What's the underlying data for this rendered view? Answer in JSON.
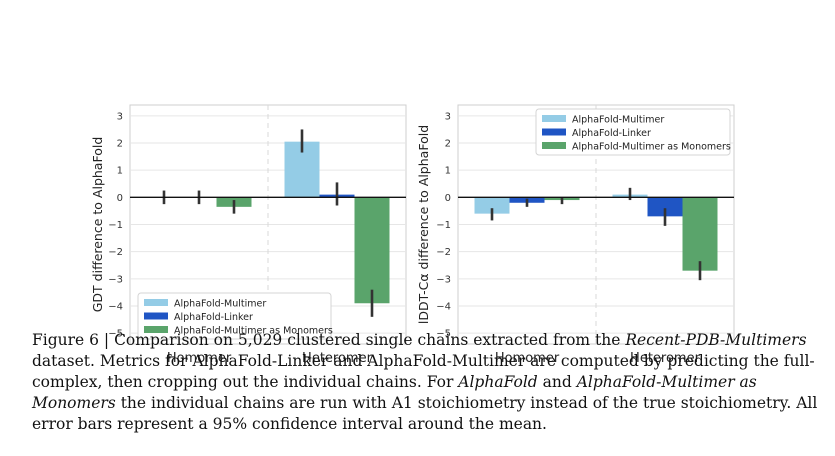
{
  "colors": {
    "AlphaFold-Multimer": "#94cce6",
    "AlphaFold-Linker": "#1f55c4",
    "AlphaFold-Multimer as Monomers": "#5aa46b"
  },
  "chart_data": [
    {
      "type": "bar",
      "ylabel": "GDT difference to AlphaFold",
      "categories": [
        "Homomer",
        "Heteromer"
      ],
      "ylim": [
        -5.4,
        3.4
      ],
      "yticks": [
        "3",
        "2",
        "1",
        "0",
        "−1",
        "−2",
        "−3",
        "−4",
        "−5"
      ],
      "series": [
        {
          "name": "AlphaFold-Multimer",
          "values": [
            0.0,
            2.05
          ],
          "err": [
            [
              -0.25,
              0.25
            ],
            [
              1.65,
              2.5
            ]
          ]
        },
        {
          "name": "AlphaFold-Linker",
          "values": [
            0.0,
            0.1
          ],
          "err": [
            [
              -0.25,
              0.25
            ],
            [
              -0.3,
              0.55
            ]
          ]
        },
        {
          "name": "AlphaFold-Multimer as Monomers",
          "values": [
            -0.35,
            -3.9
          ],
          "err": [
            [
              -0.6,
              -0.1
            ],
            [
              -4.4,
              -3.4
            ]
          ]
        }
      ],
      "legend": {
        "position": "lower-left",
        "entries": [
          "AlphaFold-Multimer",
          "AlphaFold-Linker",
          "AlphaFold-Multimer as Monomers"
        ]
      }
    },
    {
      "type": "bar",
      "ylabel": "lDDT-Cα difference to AlphaFold",
      "categories": [
        "Homomer",
        "Heteromer"
      ],
      "ylim": [
        -5.4,
        3.4
      ],
      "yticks": [
        "3",
        "2",
        "1",
        "0",
        "−1",
        "−2",
        "−3",
        "−4",
        "−5"
      ],
      "series": [
        {
          "name": "AlphaFold-Multimer",
          "values": [
            -0.6,
            0.1
          ],
          "err": [
            [
              -0.85,
              -0.4
            ],
            [
              -0.1,
              0.35
            ]
          ]
        },
        {
          "name": "AlphaFold-Linker",
          "values": [
            -0.2,
            -0.7
          ],
          "err": [
            [
              -0.35,
              -0.05
            ],
            [
              -1.05,
              -0.4
            ]
          ]
        },
        {
          "name": "AlphaFold-Multimer as Monomers",
          "values": [
            -0.1,
            -2.7
          ],
          "err": [
            [
              -0.25,
              0.0
            ],
            [
              -3.05,
              -2.35
            ]
          ]
        }
      ],
      "legend": {
        "position": "top-right",
        "entries": [
          "AlphaFold-Multimer",
          "AlphaFold-Linker",
          "AlphaFold-Multimer as Monomers"
        ]
      }
    }
  ],
  "caption": {
    "prefix": "Figure 6 | Comparison on 5,029 clustered single chains extracted from the ",
    "dataset": "Recent-PDB-Multimers",
    "mid1": " dataset. Metrics for AlphaFold-Linker and AlphaFold-Multimer are computed by predicting the full-complex, then cropping out the individual chains. For ",
    "model1": "AlphaFold",
    "and": " and ",
    "model2": "AlphaFold-Multimer as Monomers",
    "rest": " the individual chains are run with A1 stoichiometry instead of the true stoichiometry. All error bars represent a 95% confidence interval around the mean."
  }
}
